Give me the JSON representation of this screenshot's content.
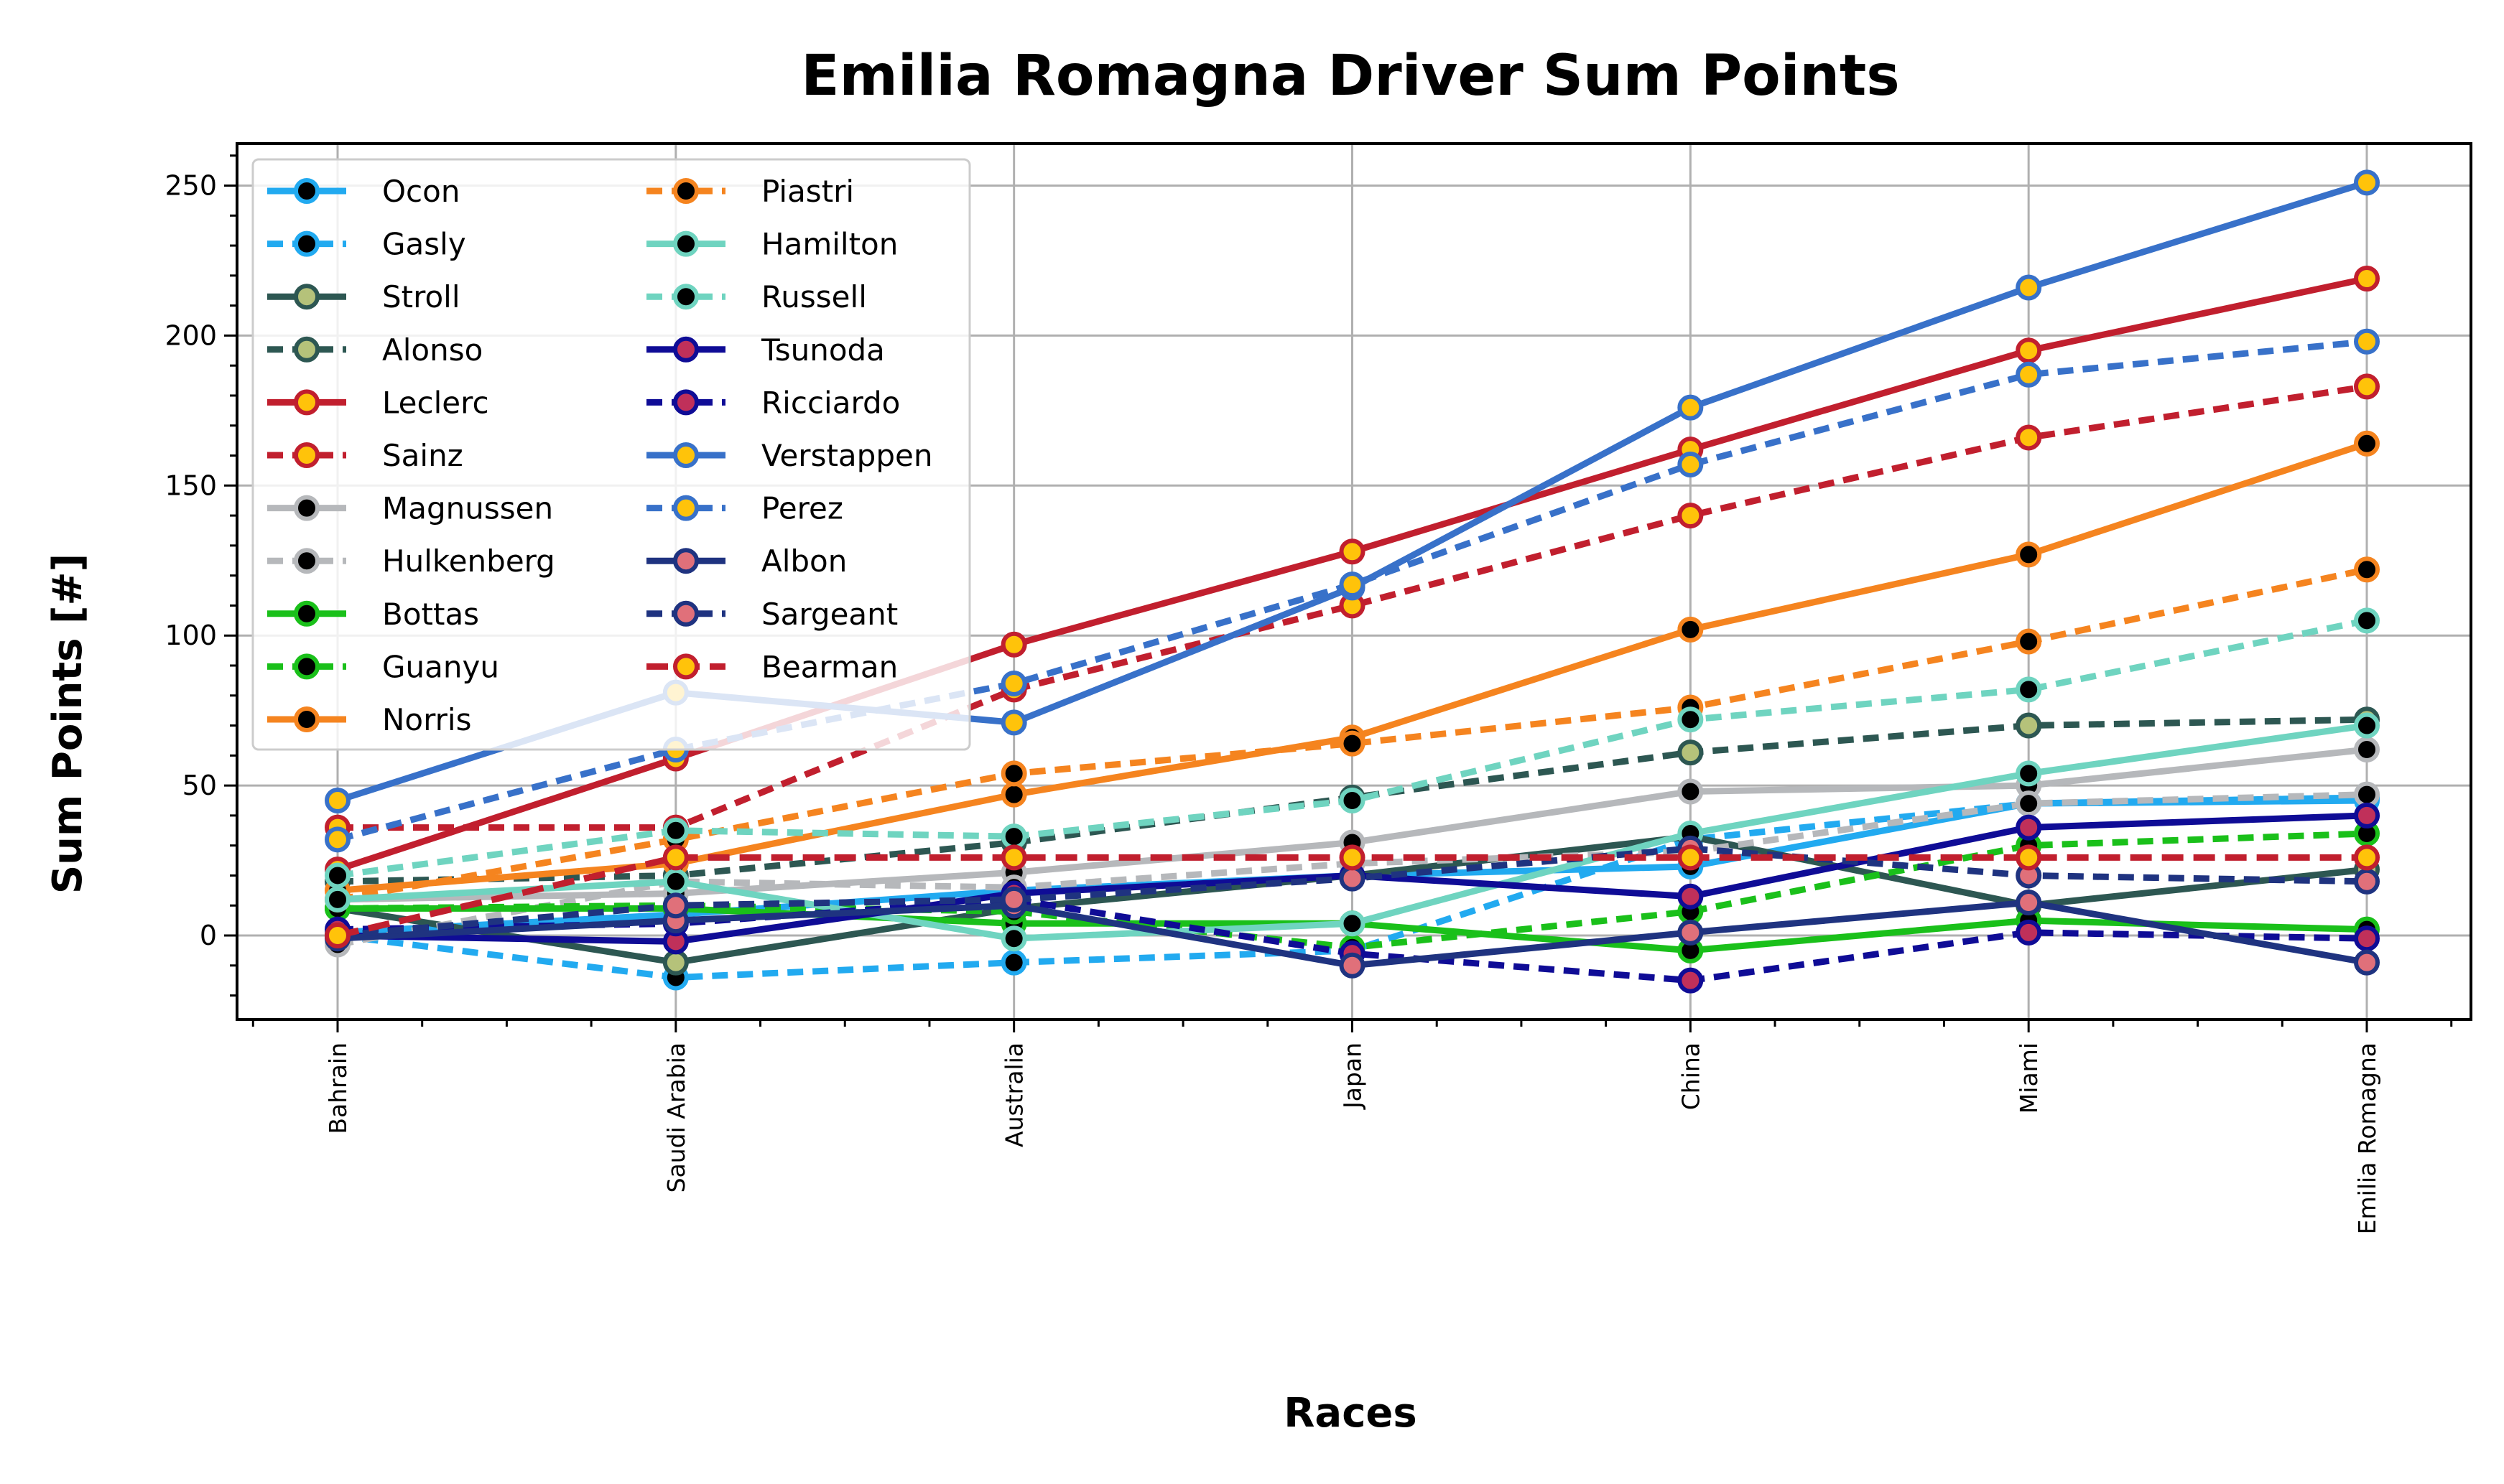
{
  "chart_data": {
    "type": "line",
    "title": "Emilia Romagna Driver Sum Points",
    "xlabel": "Races",
    "ylabel": "Sum Points [#]",
    "categories": [
      "Bahrain",
      "Saudi Arabia",
      "Australia",
      "Japan",
      "China",
      "Miami",
      "Emilia Romagna"
    ],
    "ylim": [
      -28,
      264
    ],
    "yticks": [
      0,
      50,
      100,
      150,
      200,
      250
    ],
    "grid": true,
    "legend_placement": "top-left",
    "legend_columns": 2,
    "series": [
      {
        "name": "Ocon",
        "color": "#22aaf0",
        "marker_face": "#000000",
        "dash": "solid",
        "values": [
          1,
          7,
          15,
          20,
          23,
          44,
          45
        ]
      },
      {
        "name": "Gasly",
        "color": "#22aaf0",
        "marker_face": "#000000",
        "dash": "dotted",
        "values": [
          0,
          -14,
          -9,
          -5,
          32,
          44,
          46
        ]
      },
      {
        "name": "Stroll",
        "color": "#2d5752",
        "marker_face": "#b5c27a",
        "dash": "solid",
        "values": [
          9,
          -9,
          9,
          20,
          33,
          10,
          22
        ]
      },
      {
        "name": "Alonso",
        "color": "#2d5752",
        "marker_face": "#b5c27a",
        "dash": "dotted",
        "values": [
          18,
          20,
          31,
          46,
          61,
          70,
          72
        ]
      },
      {
        "name": "Leclerc",
        "color": "#c11f2e",
        "marker_face": "#ffc30a",
        "dash": "solid",
        "values": [
          22,
          59,
          97,
          128,
          162,
          195,
          219
        ]
      },
      {
        "name": "Sainz",
        "color": "#c11f2e",
        "marker_face": "#ffc30a",
        "dash": "dotted",
        "values": [
          36,
          36,
          82,
          110,
          140,
          166,
          183
        ]
      },
      {
        "name": "Magnussen",
        "color": "#b6b8bb",
        "marker_face": "#000000",
        "dash": "solid",
        "values": [
          12,
          14,
          21,
          31,
          48,
          50,
          62
        ]
      },
      {
        "name": "Hulkenberg",
        "color": "#b6b8bb",
        "marker_face": "#000000",
        "dash": "dotted",
        "values": [
          -3,
          18,
          16,
          24,
          28,
          44,
          47
        ]
      },
      {
        "name": "Bottas",
        "color": "#1ac01a",
        "marker_face": "#000000",
        "dash": "solid",
        "values": [
          9,
          9,
          4,
          4,
          -5,
          5,
          2
        ]
      },
      {
        "name": "Guanyu",
        "color": "#1ac01a",
        "marker_face": "#000000",
        "dash": "dotted",
        "values": [
          9,
          10,
          8,
          -4,
          8,
          30,
          34
        ]
      },
      {
        "name": "Norris",
        "color": "#f5841f",
        "marker_face": "#000000",
        "dash": "solid",
        "values": [
          15,
          24,
          47,
          66,
          102,
          127,
          164
        ]
      },
      {
        "name": "Piastri",
        "color": "#f5841f",
        "marker_face": "#000000",
        "dash": "dotted",
        "values": [
          12,
          32,
          54,
          64,
          76,
          98,
          122
        ]
      },
      {
        "name": "Hamilton",
        "color": "#6fd4c0",
        "marker_face": "#000000",
        "dash": "solid",
        "values": [
          12,
          18,
          -1,
          4,
          34,
          54,
          70
        ]
      },
      {
        "name": "Russell",
        "color": "#6fd4c0",
        "marker_face": "#000000",
        "dash": "dotted",
        "values": [
          20,
          35,
          33,
          45,
          72,
          82,
          105
        ]
      },
      {
        "name": "Tsunoda",
        "color": "#0f0c96",
        "marker_face": "#c0305a",
        "dash": "solid",
        "values": [
          0,
          -2,
          14,
          20,
          13,
          36,
          40
        ]
      },
      {
        "name": "Ricciardo",
        "color": "#0f0c96",
        "marker_face": "#c0305a",
        "dash": "dotted",
        "values": [
          2,
          4,
          12,
          -6,
          -15,
          1,
          -1
        ]
      },
      {
        "name": "Verstappen",
        "color": "#3871c9",
        "marker_face": "#ffc30a",
        "dash": "solid",
        "values": [
          45,
          81,
          71,
          116,
          176,
          216,
          251
        ]
      },
      {
        "name": "Perez",
        "color": "#3871c9",
        "marker_face": "#ffc30a",
        "dash": "dotted",
        "values": [
          32,
          62,
          84,
          117,
          157,
          187,
          198
        ]
      },
      {
        "name": "Albon",
        "color": "#1f3380",
        "marker_face": "#e0707a",
        "dash": "solid",
        "values": [
          -1,
          5,
          10,
          -10,
          1,
          11,
          -9
        ]
      },
      {
        "name": "Sargeant",
        "color": "#1f3380",
        "marker_face": "#e0707a",
        "dash": "dotted",
        "values": [
          0,
          10,
          12,
          19,
          29,
          20,
          18
        ]
      },
      {
        "name": "Bearman",
        "color": "#c11f2e",
        "marker_face": "#ffc30a",
        "dash": "dashed",
        "values": [
          0,
          26,
          26,
          26,
          26,
          26,
          26
        ]
      }
    ]
  }
}
